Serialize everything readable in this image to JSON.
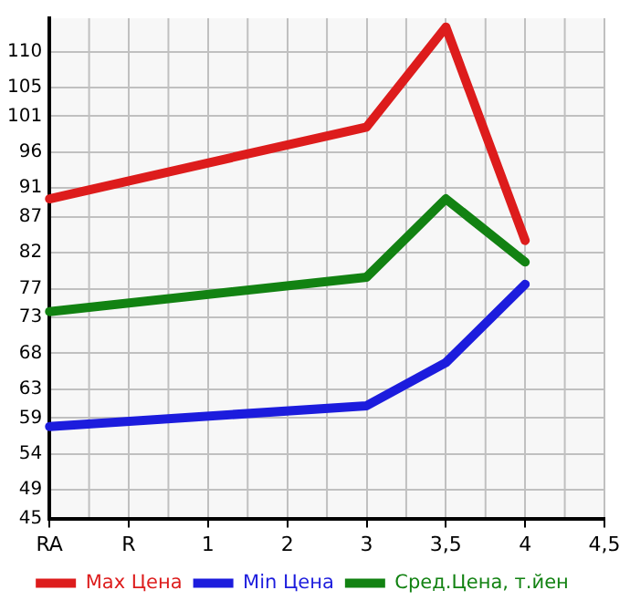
{
  "chart_data": {
    "type": "line",
    "categories": [
      "RA",
      "R",
      "1",
      "2",
      "3",
      "3,5",
      "4",
      "4,5"
    ],
    "series": [
      {
        "name": "Max Цена",
        "color": "#dd1c1c",
        "values": [
          89.5,
          null,
          null,
          null,
          99.5,
          113.4,
          83.7,
          null
        ]
      },
      {
        "name": "Min Цена",
        "color": "#1c1cdd",
        "values": [
          57.8,
          null,
          null,
          null,
          60.7,
          66.7,
          77.6,
          null
        ]
      },
      {
        "name": "Сред.Цена, т.йен",
        "color": "#128212",
        "values": [
          73.8,
          null,
          null,
          null,
          78.6,
          89.5,
          80.7,
          null
        ]
      }
    ],
    "ylim": [
      45,
      114.64
    ],
    "yticks": [
      45,
      49,
      54,
      59,
      63,
      68,
      73,
      77,
      82,
      87,
      91,
      96,
      101,
      105,
      110
    ],
    "grid": true,
    "legend": "bottom",
    "marker": "none",
    "line_style": "solid"
  }
}
